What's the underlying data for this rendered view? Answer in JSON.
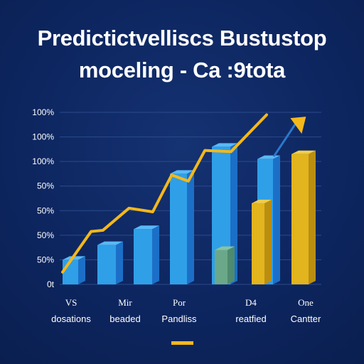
{
  "title_line1": "Predictictvelliscs Bustustop",
  "title_line2": "moceling - Ca :9tota",
  "colors": {
    "background": "#0d2660",
    "bar_blue": "#2f9fe8",
    "bar_blue_side": "#1c6fc7",
    "bar_blue_top": "#59b9f5",
    "bar_gold": "#e2b41d",
    "bar_gold_side": "#b98e12",
    "bar_green": "#6ba889",
    "line": "#f4b81a",
    "grid": "#2c4a8a",
    "text": "#ffffff"
  },
  "chart_data": {
    "type": "bar",
    "title": "Predictictvelliscs Bustustop moceling - Ca :9tota",
    "y_tick_labels": [
      "0t",
      "50%",
      "50%",
      "50%",
      "50%",
      "100%",
      "100%",
      "100%"
    ],
    "categories": [
      {
        "top": "VS",
        "bottom": "dosations"
      },
      {
        "top": "Mir",
        "bottom": "beaded"
      },
      {
        "top": "Por",
        "bottom": "Pandliss"
      },
      {
        "top": "D4",
        "bottom": "reatfied"
      },
      {
        "top": "One",
        "bottom": "Cantter"
      }
    ],
    "ylim": [
      0,
      7
    ],
    "bars": [
      {
        "value": 1.0,
        "color": "blue"
      },
      {
        "value": 1.6,
        "color": "blue"
      },
      {
        "value": 2.25,
        "color": "blue"
      },
      {
        "value": 4.5,
        "color": "blue"
      },
      {
        "value": 5.6,
        "color": "blue"
      },
      {
        "value": 1.4,
        "color": "green"
      },
      {
        "value": 5.1,
        "color": "blue"
      },
      {
        "value": 3.3,
        "color": "gold"
      },
      {
        "value": 5.3,
        "color": "gold"
      }
    ],
    "line": {
      "points": [
        [
          0.0,
          0.5
        ],
        [
          0.6,
          2.15
        ],
        [
          0.85,
          2.2
        ],
        [
          1.4,
          3.1
        ],
        [
          1.9,
          2.95
        ],
        [
          2.3,
          4.45
        ],
        [
          2.65,
          4.2
        ],
        [
          3.0,
          5.45
        ],
        [
          3.55,
          5.4
        ],
        [
          4.3,
          6.9
        ]
      ],
      "arrow_segment": {
        "from": [
          4.45,
          5.2
        ],
        "to": [
          4.95,
          6.65
        ]
      }
    }
  }
}
